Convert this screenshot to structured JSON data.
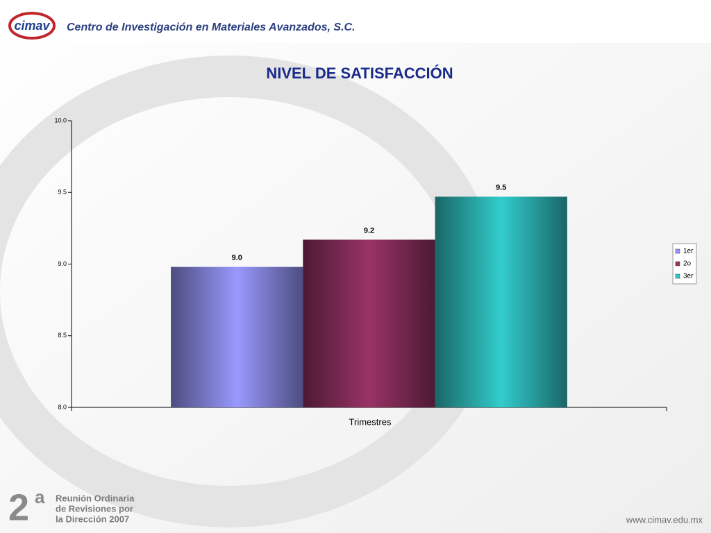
{
  "header": {
    "logo": "cimav",
    "organization": "Centro de Investigación en Materiales Avanzados, S.C."
  },
  "chart_data": {
    "type": "bar",
    "title": "NIVEL DE SATISFACCIÓN",
    "x_label": "Trimestres",
    "categories": [
      null
    ],
    "series": [
      {
        "name": "1er",
        "color": "#9999ff",
        "values": [
          8.98
        ],
        "value_labels": [
          "9.0"
        ]
      },
      {
        "name": "2o",
        "color": "#993366",
        "values": [
          9.17
        ],
        "value_labels": [
          "9.2"
        ]
      },
      {
        "name": "3er",
        "color": "#33cccc",
        "values": [
          9.47
        ],
        "value_labels": [
          "9.5"
        ]
      }
    ],
    "ylim": [
      8.0,
      10.0
    ],
    "yticks": [
      {
        "value": 8.0,
        "label": "8.0"
      },
      {
        "value": 8.5,
        "label": "8.5"
      },
      {
        "value": 9.0,
        "label": "9.0"
      },
      {
        "value": 9.5,
        "label": "9.5"
      },
      {
        "value": 10.0,
        "label": "10.0"
      }
    ],
    "grid": false,
    "legend": "right"
  },
  "footer": {
    "number": "2",
    "superscript": "a",
    "lines": [
      "Reunión Ordinaria",
      "de Revisiones por",
      "la Dirección 2007"
    ],
    "url": "www.cimav.edu.mx"
  }
}
